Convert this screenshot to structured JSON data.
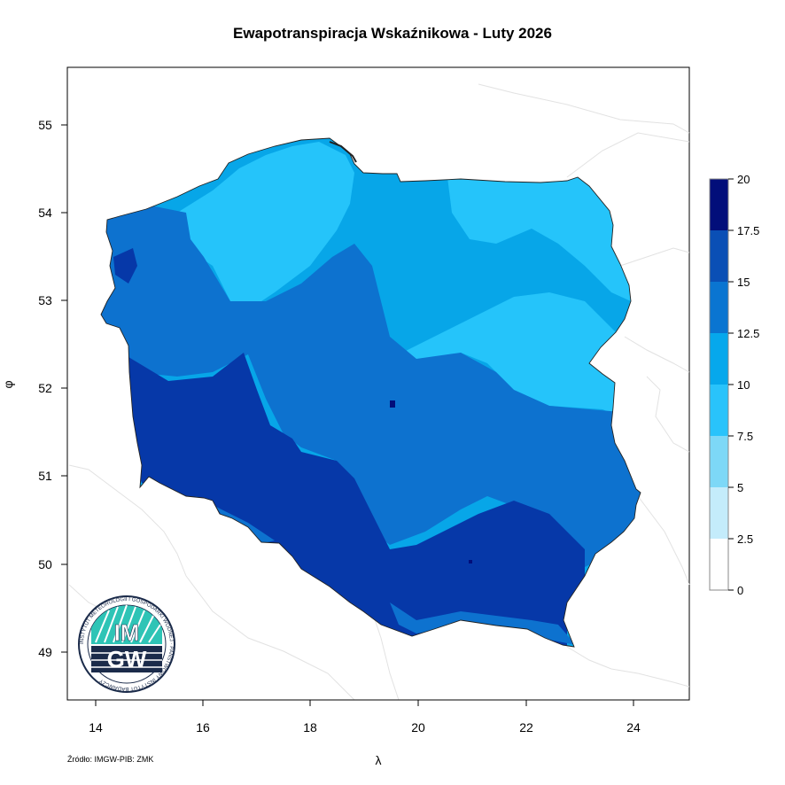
{
  "title": "Ewapotranspiracja Wskaźnikowa - Luty 2026",
  "source": "Źródło: IMGW-PIB: ZMK",
  "axes": {
    "xlabel": "λ",
    "ylabel": "φ",
    "x_ticks": [
      "14",
      "16",
      "18",
      "20",
      "22",
      "24"
    ],
    "y_ticks": [
      "55",
      "54",
      "53",
      "52",
      "51",
      "50",
      "49"
    ]
  },
  "colorbar": {
    "labels": [
      "20",
      "17.5",
      "15",
      "12.5",
      "10",
      "7.5",
      "5",
      "2.5",
      "0"
    ],
    "colors": [
      "#ffffff",
      "#c4ecfb",
      "#7dd8f7",
      "#29c3fb",
      "#06a8ec",
      "#0a75d1",
      "#0a4fb5",
      "#0732a8",
      "#020e7a"
    ]
  },
  "map_colors": {
    "lightest": "#25c4fa",
    "light": "#07a6e8",
    "medium": "#0d72cf",
    "dark": "#0638a8",
    "darkest": "#020e7a",
    "border": "#222222",
    "neighbor_lines": "#e2e2e2"
  },
  "logo": {
    "text_main_1": "IM",
    "text_main_2": "GW",
    "ring_text": "INSTYTUT METEOROLOGII I GOSPODARKI WODNEJ · PAŃSTWOWY INSTYTUT BADAWCZY"
  }
}
